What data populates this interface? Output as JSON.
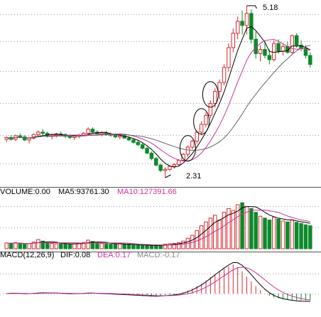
{
  "chart_data": {
    "type": "candlestick",
    "panels": [
      {
        "id": "price",
        "annotations": {
          "high_label": "5.18",
          "low_label": "2.31"
        },
        "candles": [
          [
            2.95,
            3.0,
            2.9,
            2.98
          ],
          [
            2.98,
            3.02,
            2.93,
            2.95
          ],
          [
            2.95,
            3.03,
            2.92,
            3.01
          ],
          [
            3.01,
            3.05,
            2.97,
            2.99
          ],
          [
            2.99,
            3.02,
            2.92,
            2.94
          ],
          [
            2.94,
            2.99,
            2.88,
            2.97
          ],
          [
            2.97,
            3.05,
            2.95,
            3.03
          ],
          [
            3.03,
            3.1,
            3.0,
            3.07
          ],
          [
            3.07,
            3.12,
            3.02,
            3.05
          ],
          [
            3.05,
            3.08,
            2.98,
            3.0
          ],
          [
            3.0,
            3.04,
            2.95,
            3.02
          ],
          [
            3.02,
            3.06,
            2.98,
            3.04
          ],
          [
            3.04,
            3.08,
            3.0,
            3.03
          ],
          [
            3.03,
            3.05,
            2.97,
            3.0
          ],
          [
            3.0,
            3.03,
            2.95,
            2.98
          ],
          [
            2.98,
            3.02,
            2.94,
            3.0
          ],
          [
            3.0,
            3.04,
            2.97,
            3.02
          ],
          [
            3.02,
            3.07,
            3.0,
            3.05
          ],
          [
            3.05,
            3.15,
            3.03,
            3.12
          ],
          [
            3.12,
            3.15,
            3.05,
            3.07
          ],
          [
            3.07,
            3.1,
            3.02,
            3.04
          ],
          [
            3.04,
            3.08,
            3.0,
            3.06
          ],
          [
            3.06,
            3.09,
            3.01,
            3.03
          ],
          [
            3.03,
            3.06,
            2.99,
            3.02
          ],
          [
            3.02,
            3.04,
            2.97,
            2.99
          ],
          [
            2.99,
            3.02,
            2.95,
            3.01
          ],
          [
            3.01,
            3.03,
            2.96,
            2.97
          ],
          [
            2.97,
            3.0,
            2.92,
            2.94
          ],
          [
            2.94,
            2.97,
            2.88,
            2.9
          ],
          [
            2.9,
            2.93,
            2.84,
            2.86
          ],
          [
            2.86,
            2.89,
            2.78,
            2.8
          ],
          [
            2.8,
            2.83,
            2.7,
            2.72
          ],
          [
            2.72,
            2.75,
            2.6,
            2.63
          ],
          [
            2.63,
            2.66,
            2.5,
            2.52
          ],
          [
            2.52,
            2.55,
            2.4,
            2.43
          ],
          [
            2.43,
            2.48,
            2.31,
            2.45
          ],
          [
            2.45,
            2.52,
            2.42,
            2.5
          ],
          [
            2.5,
            2.55,
            2.46,
            2.53
          ],
          [
            2.53,
            2.62,
            2.5,
            2.6
          ],
          [
            2.6,
            2.72,
            2.58,
            2.7
          ],
          [
            2.7,
            2.85,
            2.66,
            2.82
          ],
          [
            2.82,
            2.95,
            2.78,
            2.92
          ],
          [
            2.92,
            3.1,
            2.88,
            3.07
          ],
          [
            3.07,
            3.25,
            3.02,
            3.2
          ],
          [
            3.2,
            3.4,
            3.15,
            3.35
          ],
          [
            3.35,
            3.6,
            3.3,
            3.55
          ],
          [
            3.55,
            3.8,
            3.48,
            3.75
          ],
          [
            3.75,
            3.95,
            3.62,
            3.9
          ],
          [
            3.9,
            4.2,
            3.85,
            4.15
          ],
          [
            4.15,
            4.55,
            4.08,
            4.48
          ],
          [
            4.48,
            4.8,
            4.4,
            4.72
          ],
          [
            4.72,
            5.0,
            4.62,
            4.92
          ],
          [
            4.92,
            5.1,
            4.7,
            4.85
          ],
          [
            4.85,
            5.18,
            4.7,
            5.05
          ],
          [
            5.05,
            5.12,
            4.55,
            4.62
          ],
          [
            4.62,
            4.75,
            4.3,
            4.38
          ],
          [
            4.38,
            4.52,
            4.25,
            4.45
          ],
          [
            4.45,
            4.6,
            4.3,
            4.35
          ],
          [
            4.35,
            4.45,
            4.2,
            4.28
          ],
          [
            4.28,
            4.6,
            4.25,
            4.55
          ],
          [
            4.55,
            4.62,
            4.38,
            4.42
          ],
          [
            4.42,
            4.55,
            4.35,
            4.5
          ],
          [
            4.5,
            4.58,
            4.38,
            4.4
          ],
          [
            4.4,
            4.7,
            4.38,
            4.68
          ],
          [
            4.68,
            4.72,
            4.48,
            4.52
          ],
          [
            4.52,
            4.6,
            4.42,
            4.47
          ],
          [
            4.47,
            4.52,
            4.3,
            4.35
          ],
          [
            4.35,
            4.4,
            4.15,
            4.2
          ]
        ]
      },
      {
        "id": "volume",
        "legend": [
          {
            "text": "VOLUME:0.00",
            "color": "#000000"
          },
          {
            "text": "MA5:93761.30",
            "color": "#000000"
          },
          {
            "text": "MA10:127391.66",
            "color": "#cc3399"
          }
        ],
        "values": [
          30,
          28,
          32,
          26,
          24,
          27,
          35,
          48,
          40,
          30,
          28,
          26,
          27,
          25,
          24,
          26,
          29,
          33,
          45,
          38,
          30,
          28,
          26,
          25,
          24,
          27,
          23,
          22,
          20,
          19,
          18,
          17,
          16,
          18,
          20,
          24,
          26,
          28,
          32,
          40,
          55,
          70,
          95,
          120,
          140,
          160,
          175,
          150,
          190,
          210,
          200,
          230,
          240,
          220,
          210,
          190,
          170,
          160,
          150,
          165,
          155,
          145,
          140,
          150,
          138,
          132,
          125,
          120
        ]
      },
      {
        "id": "macd",
        "legend": [
          {
            "text": "MACD(12,26,9)",
            "color": "#000000"
          },
          {
            "text": "DIF:0.08",
            "color": "#000000"
          },
          {
            "text": "DEA:0.17",
            "color": "#cc3399"
          },
          {
            "text": "MACD:-0.17",
            "color": "#888888"
          }
        ],
        "values": [
          0.0,
          0.01,
          0.01,
          0.0,
          -0.01,
          0.0,
          0.01,
          0.02,
          0.02,
          0.01,
          0.01,
          0.01,
          0.0,
          0.0,
          -0.01,
          0.0,
          0.0,
          0.01,
          0.02,
          0.01,
          0.0,
          0.0,
          -0.01,
          -0.01,
          -0.02,
          -0.02,
          -0.03,
          -0.03,
          -0.04,
          -0.04,
          -0.05,
          -0.05,
          -0.06,
          -0.06,
          -0.05,
          -0.04,
          -0.03,
          -0.02,
          0.0,
          0.03,
          0.07,
          0.12,
          0.18,
          0.24,
          0.32,
          0.4,
          0.48,
          0.55,
          0.62,
          0.68,
          0.72,
          0.66,
          0.55,
          0.42,
          0.3,
          0.18,
          0.08,
          0.0,
          -0.06,
          -0.1,
          -0.12,
          -0.14,
          -0.15,
          -0.16,
          -0.17,
          -0.17,
          -0.17,
          -0.17
        ]
      }
    ]
  },
  "colors": {
    "up": "#d9272e",
    "down": "#0c8a2a",
    "ma_short": "#000000",
    "ma_long": "#cc3399",
    "grid": "#3a3a3a"
  }
}
